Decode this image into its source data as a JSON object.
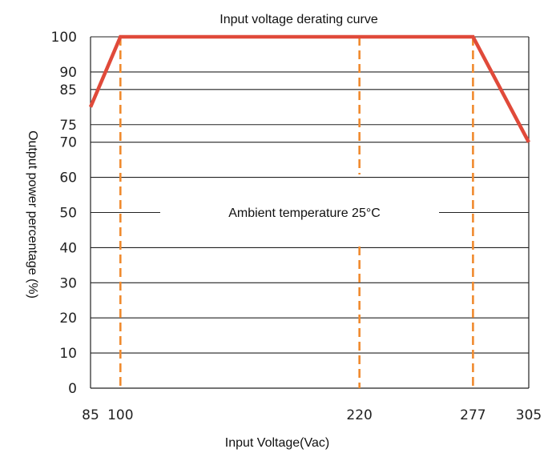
{
  "chart_data": {
    "type": "line",
    "title": "Input voltage derating curve",
    "xlabel": "Input Voltage(Vac)",
    "ylabel": "Output power percentage (%)",
    "annotation": "Ambient temperature 25°C",
    "xlim": [
      85,
      305
    ],
    "ylim": [
      0,
      100
    ],
    "x_ticks": [
      "85",
      "100",
      "220",
      "277",
      "305"
    ],
    "x_tick_values": [
      85,
      100,
      220,
      277,
      305
    ],
    "x_tick_highlight": [
      false,
      true,
      false,
      true,
      false
    ],
    "y_ticks": [
      "0",
      "10",
      "20",
      "30",
      "40",
      "50",
      "60",
      "70",
      "75",
      "85",
      "90",
      "100"
    ],
    "y_tick_values": [
      0,
      10,
      20,
      30,
      40,
      50,
      60,
      70,
      75,
      85,
      90,
      100
    ],
    "grid": "horizontal",
    "series": [
      {
        "x": [
          85,
          100,
          277,
          305
        ],
        "y": [
          80,
          100,
          100,
          70
        ]
      }
    ],
    "reference_lines_x": [
      100,
      220,
      277
    ],
    "colors": {
      "curve": "#e04a3a",
      "reference": "#f08a2e",
      "highlight_tick": "#d9473a",
      "grid": "#222222",
      "text": "#222222"
    }
  }
}
